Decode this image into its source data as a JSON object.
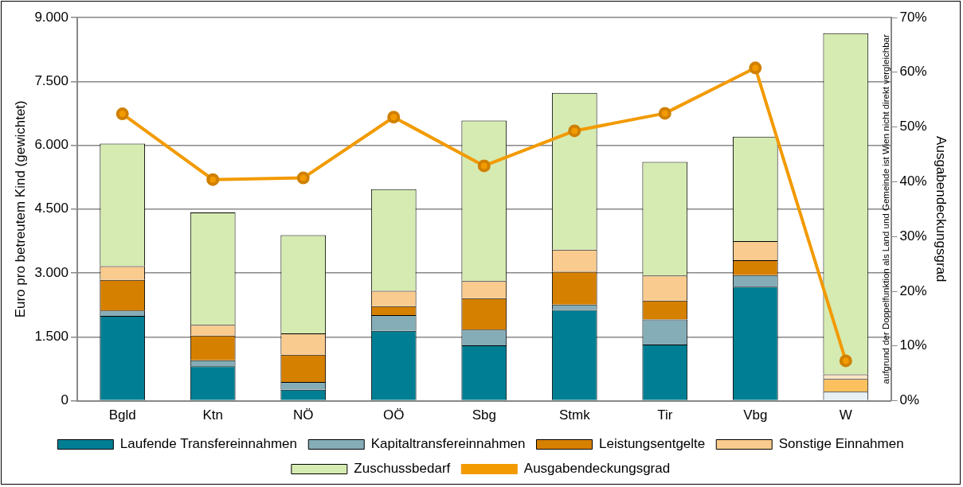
{
  "chart_data": {
    "type": "bar",
    "stacked": true,
    "categories": [
      "Bgld",
      "Ktn",
      "NÖ",
      "OÖ",
      "Sbg",
      "Stmk",
      "Tir",
      "Vbg",
      "W"
    ],
    "series": [
      {
        "name": "Laufende Transfereinnahmen",
        "color": "#007f94",
        "colors": [
          "#007f94",
          "#007f94",
          "#007f94",
          "#007f94",
          "#007f94",
          "#007f94",
          "#007f94",
          "#007f94",
          "#e6f0f5"
        ],
        "values": [
          1990,
          810,
          260,
          1640,
          1300,
          2130,
          1320,
          2680,
          210
        ]
      },
      {
        "name": "Kapitaltransfereinnahmen",
        "color": "#85adb7",
        "values": [
          130,
          140,
          180,
          370,
          370,
          130,
          590,
          270,
          0
        ]
      },
      {
        "name": "Leistungsentgelte",
        "color": "#d68000",
        "colors": [
          "#d68000",
          "#d68000",
          "#d68000",
          "#d68000",
          "#d68000",
          "#d68000",
          "#d68000",
          "#d68000",
          "#fbc15e"
        ],
        "values": [
          720,
          580,
          640,
          210,
          740,
          770,
          440,
          350,
          300
        ]
      },
      {
        "name": "Sonstige Einnahmen",
        "color": "#f9cb8e",
        "colors": [
          "#f9cb8e",
          "#f9cb8e",
          "#f9cb8e",
          "#f9cb8e",
          "#f9cb8e",
          "#f9cb8e",
          "#f9cb8e",
          "#f9cb8e",
          "#fde6c6"
        ],
        "values": [
          320,
          250,
          500,
          360,
          400,
          520,
          590,
          450,
          110
        ]
      },
      {
        "name": "Zuschussbedarf",
        "color": "#d6ebb2",
        "values": [
          2880,
          2640,
          2310,
          2390,
          3770,
          3680,
          2670,
          2450,
          8010
        ]
      },
      {
        "name": "Ausgabendeckungsgrad",
        "type": "line",
        "axis": "y2",
        "color": "#f29a00",
        "marker": "circle",
        "values": [
          52.4,
          40.4,
          40.7,
          51.8,
          42.9,
          49.3,
          52.5,
          60.8,
          7.3
        ]
      }
    ],
    "ylabel": "Euro pro betreutem Kind (gewichtet)",
    "y2label": "Ausgabendeckungsgrad",
    "ylim": [
      0,
      9000
    ],
    "yticks": [
      0,
      {
        "value": 1500,
        "label": "1.500"
      },
      {
        "value": 3000,
        "label": "3.000"
      },
      {
        "value": 4500,
        "label": "4.500"
      },
      {
        "value": 6000,
        "label": "6.000"
      },
      {
        "value": 7500,
        "label": "7.500"
      },
      {
        "value": 9000,
        "label": "9.000"
      }
    ],
    "y2lim": [
      0,
      70
    ],
    "y2ticks": [
      {
        "value": 0,
        "label": "0%"
      },
      {
        "value": 10,
        "label": "10%"
      },
      {
        "value": 20,
        "label": "20%"
      },
      {
        "value": 30,
        "label": "30%"
      },
      {
        "value": 40,
        "label": "40%"
      },
      {
        "value": 50,
        "label": "50%"
      },
      {
        "value": 60,
        "label": "60%"
      },
      {
        "value": 70,
        "label": "70%"
      }
    ],
    "grid": "y",
    "legend": "bottom",
    "annotations": [
      "aufgrund der Doppelfunktion als Land und Gemeinde ist Wien nicht direkt vergleichbar"
    ]
  }
}
